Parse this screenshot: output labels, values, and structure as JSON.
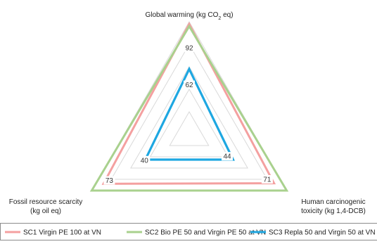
{
  "chart_data": {
    "type": "radar",
    "axes": [
      {
        "name": "Global warming (kg CO2 eq)",
        "lines": [
          [
            {
              "t": "Global warming (kg CO"
            },
            {
              "t": "2",
              "sub": true
            },
            {
              "t": " eq)"
            }
          ]
        ]
      },
      {
        "name": "Human carcinogenic toxicity (kg 1,4-DCB)",
        "lines": [
          [
            {
              "t": "Human carcinogenic"
            }
          ],
          [
            {
              "t": "toxicity (kg 1,4-DCB)"
            }
          ]
        ]
      },
      {
        "name": "Fossil resource scarcity (kg oil eq)",
        "lines": [
          [
            {
              "t": "Fossil resource scarcity"
            }
          ],
          [
            {
              "t": "(kg oil eq)"
            }
          ]
        ]
      }
    ],
    "series": [
      {
        "name": "SC1 Virgin PE 100 at VN",
        "color": "#f4a0a0",
        "values": [
          0.98,
          0.87,
          0.88
        ]
      },
      {
        "name": "SC2 Bio PE 50 and Virgin PE 50 at VN",
        "color": "#a9d18e",
        "values": [
          0.96,
          1.0,
          1.0
        ]
      },
      {
        "name": "SC3 Repla 50 and Virgin 50 at VN",
        "color": "#1ea7e1",
        "values": [
          0.58,
          0.45,
          0.45
        ]
      }
    ],
    "value_labels": [
      {
        "text": "92",
        "axis": 0,
        "at": 0.77
      },
      {
        "text": "62",
        "axis": 0,
        "at": 0.44
      },
      {
        "text": "44",
        "axis": 1,
        "at": 0.39
      },
      {
        "text": "71",
        "axis": 1,
        "at": 0.8
      },
      {
        "text": "40",
        "axis": 2,
        "at": 0.46
      },
      {
        "text": "73",
        "axis": 2,
        "at": 0.82
      }
    ],
    "grid_levels": [
      0.2,
      0.4,
      0.6,
      0.8,
      1.0
    ],
    "grid": true,
    "legend_position": "bottom",
    "grid_color": "#d9d9d9"
  }
}
